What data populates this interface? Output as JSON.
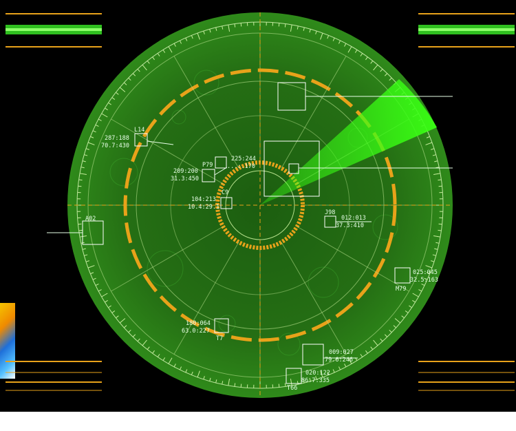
{
  "colors": {
    "background": "#000000",
    "scope_green": "#1f7a12",
    "grid_green": "#3fc03a",
    "sweep": "#39ff14",
    "amber": "#e8a21a",
    "label": "#e8ffe8"
  },
  "targets": [
    {
      "id": "L14",
      "code": "287:188",
      "value": "70.7:430"
    },
    {
      "id": "P79",
      "code": "209:200",
      "value": "31.3:450"
    },
    {
      "id": "",
      "code": "225:244",
      "value": "...:.170"
    },
    {
      "id": "C9",
      "code": "104:213",
      "value": "10.4:29.1"
    },
    {
      "id": "J98",
      "code": "012:013",
      "value": "37.3:410"
    },
    {
      "id": "A02",
      "code": "",
      "value": ""
    },
    {
      "id": "M79",
      "code": "025:045",
      "value": "32.5:163"
    },
    {
      "id": "T7",
      "code": "180:064",
      "value": "63.0:227"
    },
    {
      "id": "",
      "code": "009:027",
      "value": "79.6:246"
    },
    {
      "id": "T66",
      "code": "020:122",
      "value": "86.7:335"
    }
  ],
  "icons": [
    "radar-scope",
    "sweep-beam",
    "waveform-strip"
  ]
}
